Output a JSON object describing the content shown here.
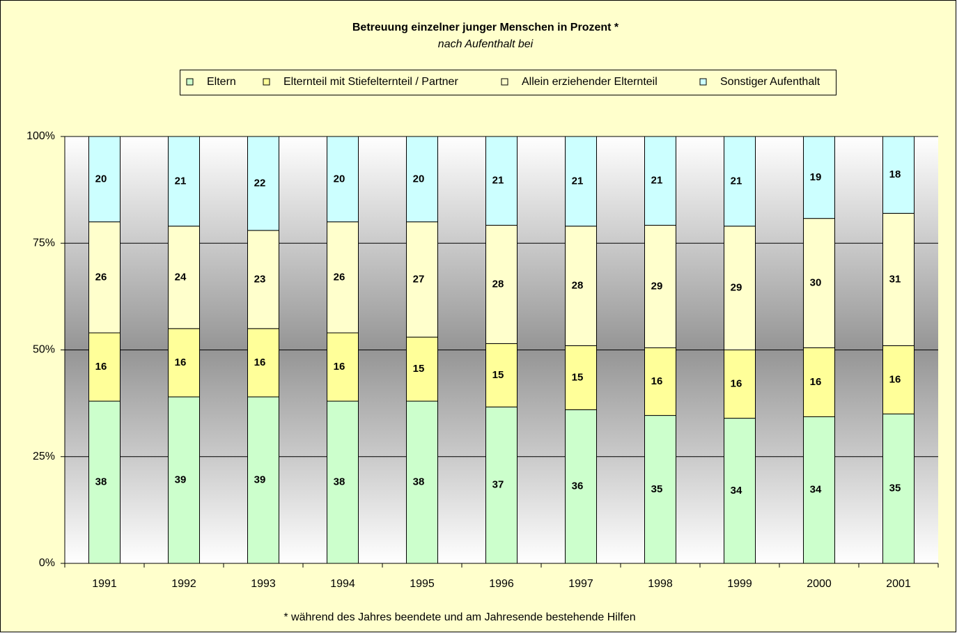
{
  "chart_data": {
    "type": "bar",
    "stacked": "percent",
    "title": "Betreuung einzelner junger Menschen in Prozent *",
    "subtitle": "nach Aufenthalt bei",
    "footnote": "* während des Jahres beendete und am Jahresende bestehende Hilfen",
    "categories": [
      "1991",
      "1992",
      "1993",
      "1994",
      "1995",
      "1996",
      "1997",
      "1998",
      "1999",
      "2000",
      "2001"
    ],
    "series": [
      {
        "name": "Eltern",
        "color": "#ccffcc",
        "values": [
          38,
          39,
          39,
          38,
          38,
          37,
          36,
          35,
          34,
          34,
          35
        ]
      },
      {
        "name": "Elternteil mit Stiefelternteil / Partner",
        "color": "#ffff99",
        "values": [
          16,
          16,
          16,
          16,
          15,
          15,
          15,
          16,
          16,
          16,
          16
        ]
      },
      {
        "name": "Allein erziehender Elternteil",
        "color": "#ffffcc",
        "values": [
          26,
          24,
          23,
          26,
          27,
          28,
          28,
          29,
          29,
          30,
          31
        ]
      },
      {
        "name": "Sonstiger Aufenthalt",
        "color": "#ccffff",
        "values": [
          20,
          21,
          22,
          20,
          20,
          21,
          21,
          21,
          21,
          19,
          18
        ]
      }
    ],
    "ylim": [
      0,
      100
    ],
    "yticks": [
      {
        "value": 0,
        "label": "0%"
      },
      {
        "value": 25,
        "label": "25%"
      },
      {
        "value": 50,
        "label": "50%"
      },
      {
        "value": 75,
        "label": "75%"
      },
      {
        "value": 100,
        "label": "100%"
      }
    ],
    "grid": true,
    "legend": "top"
  }
}
